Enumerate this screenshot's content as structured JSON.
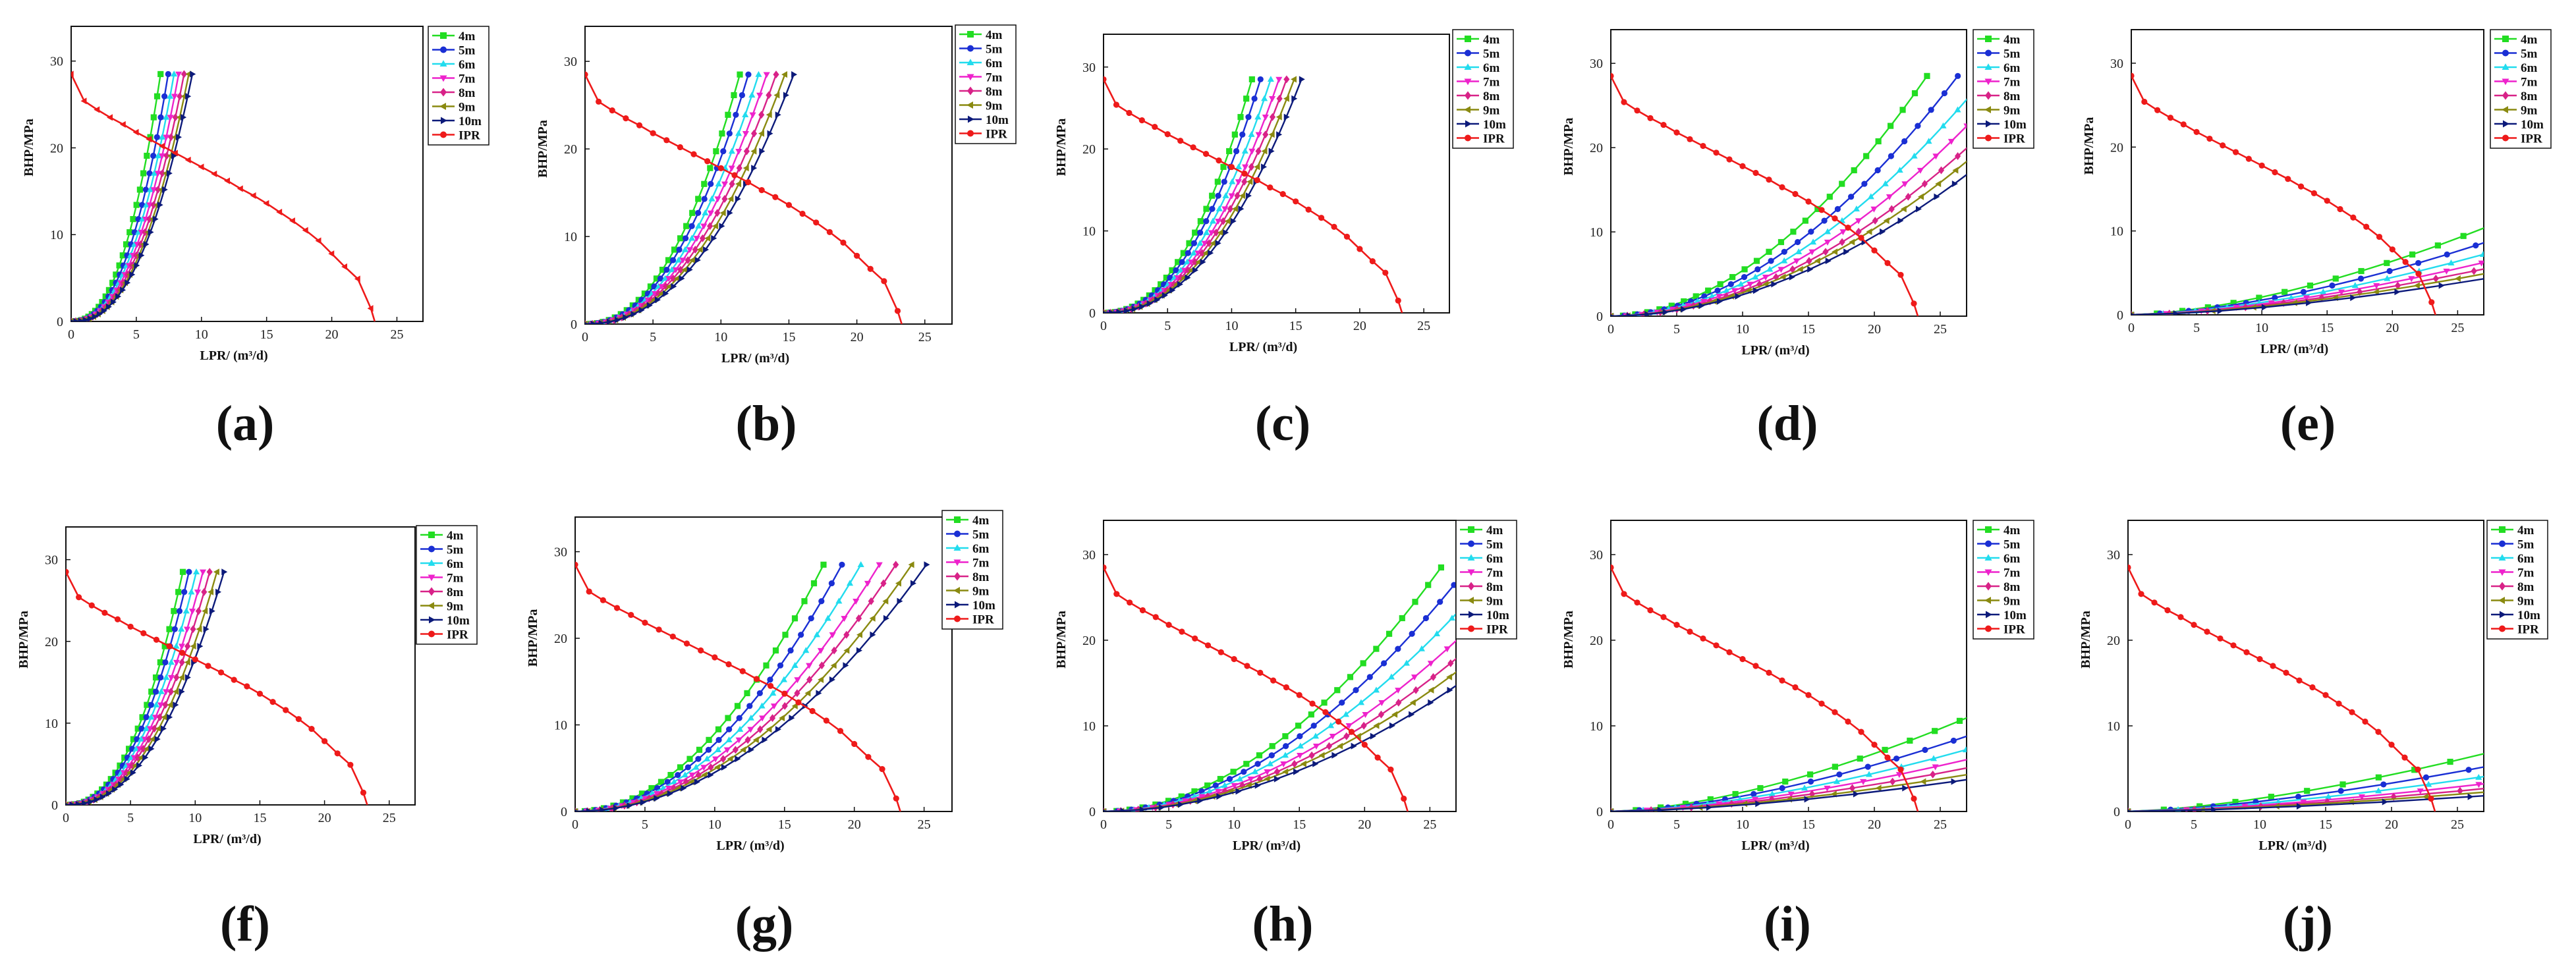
{
  "figure": {
    "xlabel": "LPR/ (m³/d)",
    "ylabel": "BHP/MPa",
    "xticks": [
      "0",
      "5",
      "10",
      "15",
      "20",
      "25"
    ],
    "yticks": [
      "0",
      "10",
      "20",
      "30"
    ],
    "legend": [
      "4m",
      "5m",
      "6m",
      "7m",
      "8m",
      "9m",
      "10m",
      "IPR"
    ],
    "colors": {
      "4m": "#22dd22",
      "5m": "#1a2fd4",
      "6m": "#22dcee",
      "7m": "#ee22cc",
      "8m": "#d82288",
      "9m": "#8a8a10",
      "10m": "#0c1a7a",
      "IPR": "#ee1a1a"
    }
  },
  "chart_data": [
    {
      "label": "(a)",
      "type": "line",
      "xlim": [
        0,
        27
      ],
      "ylim": [
        0,
        34
      ],
      "k": [
        0.28,
        0.23,
        0.2,
        0.18,
        0.16,
        0.145,
        0.135
      ],
      "n": 2.4
    },
    {
      "label": "(b)",
      "type": "line",
      "xlim": [
        0,
        27
      ],
      "ylim": [
        0,
        34
      ],
      "k": [
        0.135,
        0.12,
        0.105,
        0.095,
        0.085,
        0.077,
        0.07
      ],
      "n": 2.2
    },
    {
      "label": "(c)",
      "type": "line",
      "xlim": [
        0,
        27
      ],
      "ylim": [
        0,
        34
      ],
      "k": [
        0.13,
        0.115,
        0.1,
        0.09,
        0.082,
        0.075,
        0.069
      ],
      "n": 2.2
    },
    {
      "label": "(d)",
      "type": "line",
      "xlim": [
        0,
        27
      ],
      "ylim": [
        0,
        34
      ],
      "k": [
        0.068,
        0.057,
        0.049,
        0.043,
        0.038,
        0.035,
        0.032
      ],
      "n": 1.9
    },
    {
      "label": "(e)",
      "type": "line",
      "xlim": [
        0,
        27
      ],
      "ylim": [
        0,
        34
      ],
      "k": [
        0.053,
        0.044,
        0.037,
        0.032,
        0.028,
        0.025,
        0.022
      ],
      "n": 1.6
    },
    {
      "label": "(f)",
      "type": "line",
      "xlim": [
        0,
        27
      ],
      "ylim": [
        0,
        34
      ],
      "k": [
        0.18,
        0.16,
        0.14,
        0.125,
        0.112,
        0.1,
        0.09
      ],
      "n": 2.3
    },
    {
      "label": "(g)",
      "type": "line",
      "xlim": [
        0,
        27
      ],
      "ylim": [
        0,
        34
      ],
      "k": [
        0.09,
        0.078,
        0.068,
        0.06,
        0.054,
        0.049,
        0.045
      ],
      "n": 2.0
    },
    {
      "label": "(h)",
      "type": "line",
      "xlim": [
        0,
        27
      ],
      "ylim": [
        0,
        34
      ],
      "k": [
        0.059,
        0.051,
        0.044,
        0.038,
        0.034,
        0.031,
        0.028
      ],
      "n": 1.9
    },
    {
      "label": "(i)",
      "type": "line",
      "xlim": [
        0,
        27
      ],
      "ylim": [
        0,
        34
      ],
      "k": [
        0.056,
        0.045,
        0.037,
        0.031,
        0.026,
        0.022,
        0.019
      ],
      "n": 1.6
    },
    {
      "label": "(j)",
      "type": "line",
      "xlim": [
        0,
        27
      ],
      "ylim": [
        0,
        34
      ],
      "k": [
        0.048,
        0.037,
        0.029,
        0.023,
        0.019,
        0.016,
        0.013
      ],
      "n": 1.5
    }
  ],
  "series_rule": "BHP = k * LPR^n, capped at 28.5 MPa",
  "ipr": {
    "lpr": [
      0,
      1,
      2,
      3,
      4,
      5,
      6,
      7,
      8,
      9,
      10,
      11,
      12,
      13,
      14,
      15,
      16,
      17,
      18,
      19,
      20,
      21,
      22,
      23,
      23.3
    ],
    "bhp": [
      28.5,
      25.4,
      24.4,
      23.5,
      22.7,
      21.8,
      21.0,
      20.2,
      19.4,
      18.6,
      17.8,
      17.0,
      16.2,
      15.3,
      14.5,
      13.6,
      12.6,
      11.6,
      10.5,
      9.3,
      7.8,
      6.3,
      4.9,
      1.5,
      0
    ]
  }
}
